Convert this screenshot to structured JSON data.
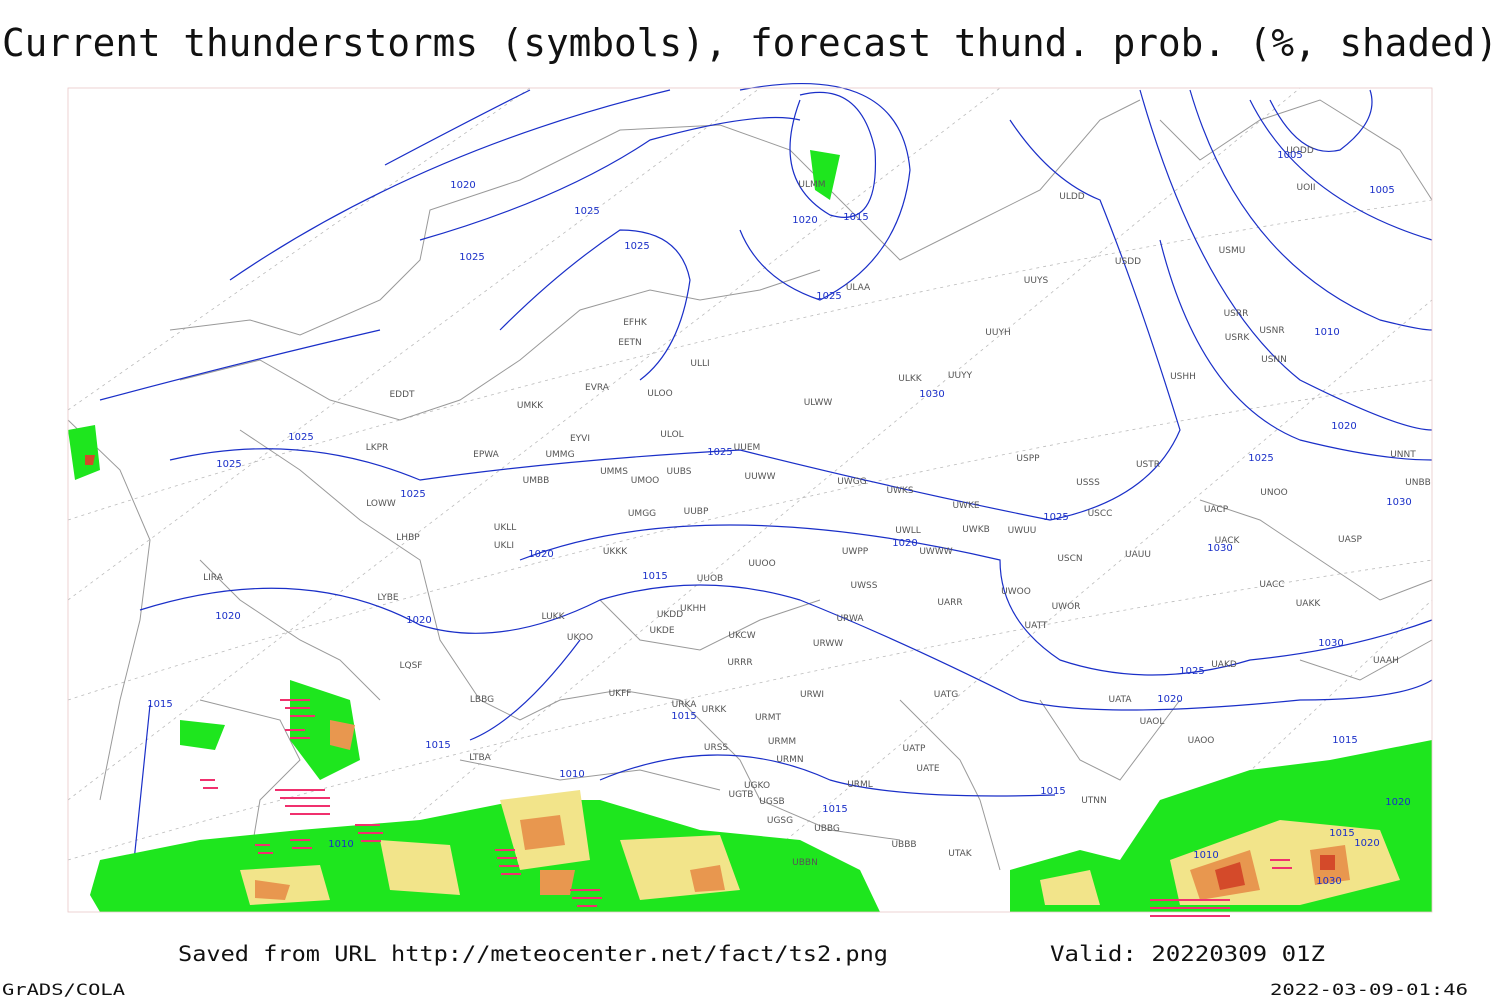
{
  "title": "Current thunderstorms (symbols), forecast thund. prob. (%, shaded)",
  "footer": {
    "saved": "Saved from URL http://meteocenter.net/fact/ts2.png",
    "valid": "Valid: 20220309 01Z",
    "left": "GrADS/COLA",
    "right": "2022-03-09-01:46"
  },
  "stations": [
    "ULMM",
    "ULDD",
    "ULAA",
    "UUYS",
    "USDD",
    "USMU",
    "UOII",
    "UODD",
    "EFHK",
    "EETN",
    "ULLI",
    "UUYH",
    "USRR",
    "USRK",
    "USNR",
    "USNN",
    "UUYY",
    "ULKK",
    "USHH",
    "EVRA",
    "ULOO",
    "EDDT",
    "UMKK",
    "ULWW",
    "UUEM",
    "ULOL",
    "EYVI",
    "LKPR",
    "EPWA",
    "UMMG",
    "USPP",
    "USTR",
    "UNNT",
    "UNBB",
    "UMMS",
    "UUBS",
    "UMOO",
    "UUWW",
    "UWGG",
    "UWKS",
    "USSS",
    "UNOO",
    "UMBB",
    "LOWW",
    "UWKE",
    "USCC",
    "UACP",
    "UMGG",
    "UUBP",
    "UWLL",
    "UWKB",
    "UWUU",
    "LHBP",
    "UKLL",
    "UACK",
    "UASP",
    "UKLI",
    "UKKK",
    "UWPP",
    "UWWW",
    "USCN",
    "UAUU",
    "UUOO",
    "LIRA",
    "UUOB",
    "UACC",
    "UWSS",
    "LYBE",
    "UKDD",
    "UKHH",
    "UARR",
    "UWOO",
    "UWOR",
    "UAKK",
    "LUKK",
    "UKOO",
    "UKDE",
    "UKCW",
    "URWA",
    "UATT",
    "URWW",
    "URRR",
    "UAKD",
    "UAAH",
    "LQSF",
    "LBBG",
    "UKFF",
    "URKA",
    "URKK",
    "URWI",
    "UATG",
    "UATA",
    "URMT",
    "UAOL",
    "URSS",
    "URMM",
    "UATP",
    "UAOO",
    "LTBA",
    "URMN",
    "UATE",
    "UGKO",
    "URML",
    "UTNN",
    "UGSB",
    "UGTB",
    "UGSG",
    "UBBG",
    "UBBB",
    "UBBN",
    "UTAK"
  ],
  "isobar_labels": [
    1020,
    1025,
    1025,
    1025,
    1020,
    1015,
    1025,
    1030,
    1025,
    1025,
    1025,
    1025,
    1025,
    1020,
    1020,
    1015,
    1020,
    1020,
    1015,
    1015,
    1015,
    1010,
    1015,
    1010,
    1015,
    1020,
    1025,
    1030,
    1030,
    1030,
    1025,
    1020,
    1010,
    1005,
    1005,
    1015,
    1020,
    1015,
    1020,
    1010,
    1030
  ]
}
